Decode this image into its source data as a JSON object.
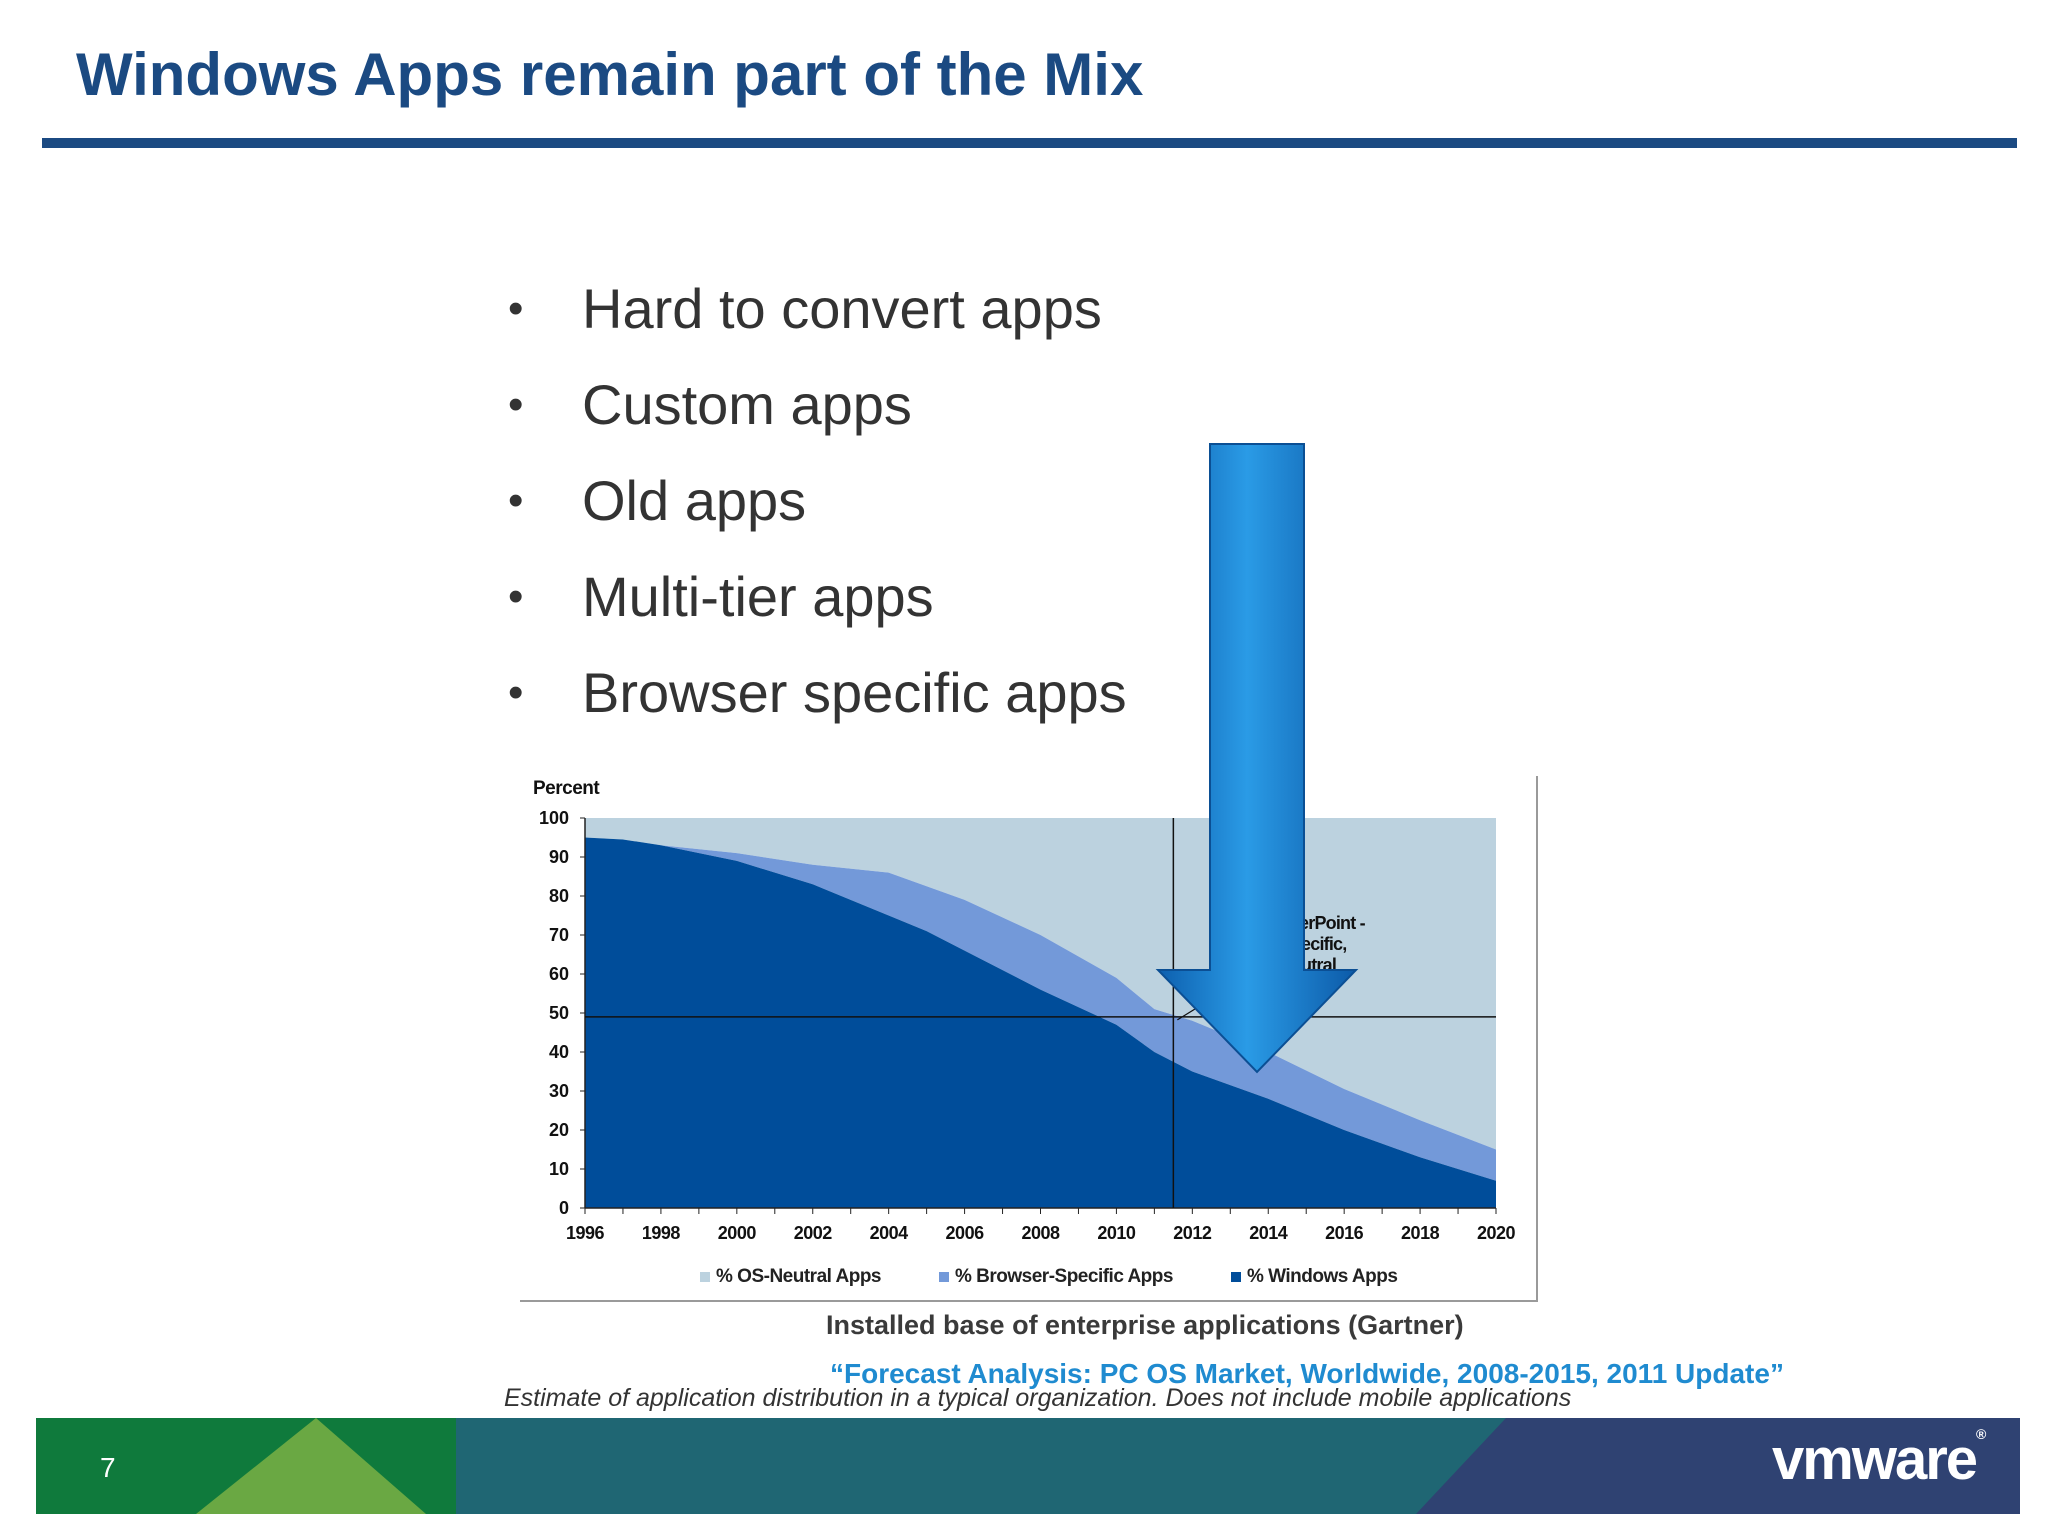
{
  "slide": {
    "title": "Windows Apps remain part of the Mix",
    "page_number": "7",
    "logo": "vmware",
    "logo_mark": "®"
  },
  "bullets": [
    "Hard to convert apps",
    "Custom apps",
    "Old apps",
    "Multi-tier apps",
    "Browser specific apps"
  ],
  "bullet_glyph": "•",
  "caption": "Installed base of enterprise applications (Gartner)",
  "source": "“Forecast Analysis: PC OS Market, Worldwide, 2008-2015, 2011 Update”",
  "footnote": "Estimate of application distribution in a typical organization. Does not include mobile applications",
  "chart_data": {
    "type": "area",
    "stacked": true,
    "ylabel": "Percent",
    "ylim": [
      0,
      100
    ],
    "yticks": [
      0,
      10,
      20,
      30,
      40,
      50,
      60,
      70,
      80,
      90,
      100
    ],
    "xlim": [
      1996,
      2020
    ],
    "xticks": [
      1996,
      1998,
      2000,
      2002,
      2004,
      2006,
      2008,
      2010,
      2012,
      2014,
      2016,
      2018,
      2020
    ],
    "x": [
      1996,
      1997,
      1998,
      2000,
      2002,
      2004,
      2005,
      2006,
      2008,
      2010,
      2011,
      2012,
      2014,
      2016,
      2018,
      2020
    ],
    "series": [
      {
        "name": "% Windows Apps",
        "color": "#004d9a",
        "values": [
          95,
          94.5,
          93,
          89,
          83,
          75,
          71,
          66,
          56,
          47,
          40,
          35,
          28,
          20,
          13,
          7
        ]
      },
      {
        "name": "% Browser-Specific Apps",
        "color": "#7399d9",
        "values": [
          0,
          0,
          0,
          2,
          5,
          11,
          11.5,
          13,
          14,
          12,
          11,
          13,
          12,
          10.5,
          9.5,
          8
        ]
      },
      {
        "name": "% OS-Neutral Apps",
        "color": "#bcd2df",
        "values": [
          5,
          5.5,
          7,
          9,
          12,
          14,
          17.5,
          21,
          30,
          41,
          49,
          52,
          60,
          69.5,
          77.5,
          85
        ]
      }
    ],
    "legend_order": [
      "% OS-Neutral Apps",
      "% Browser-Specific Apps",
      "% Windows Apps"
    ],
    "crossover_x": 2011.5,
    "crossover_y": 49,
    "annotation_lines": [
      "overPoint -",
      "Specific,",
      "Neutral"
    ],
    "grid": false,
    "legend_position": "bottom"
  },
  "colors": {
    "title": "#1b4a82",
    "arrow": "#1a7fd1",
    "footer_green": "#0f7a3c",
    "footer_teal": "#1f6673",
    "footer_navy": "#2f4272"
  }
}
